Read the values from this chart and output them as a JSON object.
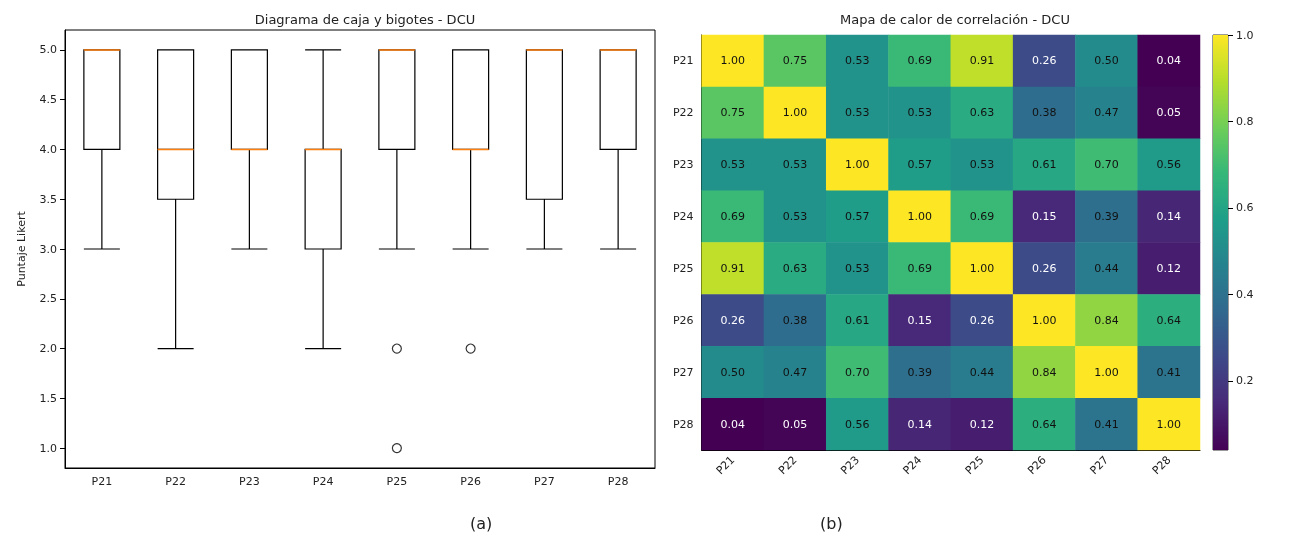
{
  "chart_data": [
    {
      "type": "box",
      "title": "Diagrama de caja y bigotes - DCU",
      "ylabel": "Puntaje Likert",
      "categories": [
        "P21",
        "P22",
        "P23",
        "P24",
        "P25",
        "P26",
        "P27",
        "P28"
      ],
      "boxes": [
        {
          "low": 3,
          "q1": 4,
          "median": 5,
          "q3": 5,
          "high": 5
        },
        {
          "low": 2,
          "q1": 3.5,
          "median": 4,
          "q3": 5,
          "high": 5
        },
        {
          "low": 3,
          "q1": 4,
          "median": 4,
          "q3": 5,
          "high": 5
        },
        {
          "low": 2,
          "q1": 3,
          "median": 4,
          "q3": 4,
          "high": 5
        },
        {
          "low": 3,
          "q1": 4,
          "median": 5,
          "q3": 5,
          "high": 5,
          "outliers": [
            2,
            1
          ]
        },
        {
          "low": 3,
          "q1": 4,
          "median": 4,
          "q3": 5,
          "high": 5,
          "outliers": [
            2
          ]
        },
        {
          "low": 3,
          "q1": 3.5,
          "median": 5,
          "q3": 5,
          "high": 5
        },
        {
          "low": 3,
          "q1": 4,
          "median": 5,
          "q3": 5,
          "high": 5
        }
      ],
      "ylim": [
        0.8,
        5.2
      ],
      "yticks": [
        {
          "value": 1,
          "label": "1.0"
        },
        {
          "value": 1.5,
          "label": "1.5"
        },
        {
          "value": 2,
          "label": "2.0"
        },
        {
          "value": 2.5,
          "label": "2.5"
        },
        {
          "value": 3,
          "label": "3.0"
        },
        {
          "value": 3.5,
          "label": "3.5"
        },
        {
          "value": 4,
          "label": "4.0"
        },
        {
          "value": 4.5,
          "label": "4.5"
        },
        {
          "value": 5,
          "label": "5.0"
        }
      ],
      "grid": false,
      "legend": false,
      "annotations": [
        "(a)"
      ]
    },
    {
      "type": "heatmap",
      "title": "Mapa de calor de correlación - DCU",
      "categories": [
        "P21",
        "P22",
        "P23",
        "P24",
        "P25",
        "P26",
        "P27",
        "P28"
      ],
      "y_categories": [
        "P21",
        "P22",
        "P23",
        "P24",
        "P25",
        "P26",
        "P27",
        "P28"
      ],
      "cells": [
        [
          1.0,
          0.75,
          0.53,
          0.69,
          0.91,
          0.26,
          0.5,
          0.04
        ],
        [
          0.75,
          1.0,
          0.53,
          0.53,
          0.63,
          0.38,
          0.47,
          0.05
        ],
        [
          0.53,
          0.53,
          1.0,
          0.57,
          0.53,
          0.61,
          0.7,
          0.56
        ],
        [
          0.69,
          0.53,
          0.57,
          1.0,
          0.69,
          0.15,
          0.39,
          0.14
        ],
        [
          0.91,
          0.63,
          0.53,
          0.69,
          1.0,
          0.26,
          0.44,
          0.12
        ],
        [
          0.26,
          0.38,
          0.61,
          0.15,
          0.26,
          1.0,
          0.84,
          0.64
        ],
        [
          0.5,
          0.47,
          0.7,
          0.39,
          0.44,
          0.84,
          1.0,
          0.41
        ],
        [
          0.04,
          0.05,
          0.56,
          0.14,
          0.12,
          0.64,
          0.41,
          1.0
        ]
      ],
      "cell_labels": [
        [
          "1.00",
          "0.75",
          "0.53",
          "0.69",
          "0.91",
          "0.26",
          "0.50",
          "0.04"
        ],
        [
          "0.75",
          "1.00",
          "0.53",
          "0.53",
          "0.63",
          "0.38",
          "0.47",
          "0.05"
        ],
        [
          "0.53",
          "0.53",
          "1.00",
          "0.57",
          "0.53",
          "0.61",
          "0.70",
          "0.56"
        ],
        [
          "0.69",
          "0.53",
          "0.57",
          "1.00",
          "0.69",
          "0.15",
          "0.39",
          "0.14"
        ],
        [
          "0.91",
          "0.63",
          "0.53",
          "0.69",
          "1.00",
          "0.26",
          "0.44",
          "0.12"
        ],
        [
          "0.26",
          "0.38",
          "0.61",
          "0.15",
          "0.26",
          "1.00",
          "0.84",
          "0.64"
        ],
        [
          "0.50",
          "0.47",
          "0.70",
          "0.39",
          "0.44",
          "0.84",
          "1.00",
          "0.41"
        ],
        [
          "0.04",
          "0.05",
          "0.56",
          "0.14",
          "0.12",
          "0.64",
          "0.41",
          "1.00"
        ]
      ],
      "data_labels": true,
      "clim": [
        0.04,
        1.0
      ],
      "cticks": [
        {
          "value": 0.2,
          "label": "0.2"
        },
        {
          "value": 0.4,
          "label": "0.4"
        },
        {
          "value": 0.6,
          "label": "0.6"
        },
        {
          "value": 0.8,
          "label": "0.8"
        },
        {
          "value": 1.0,
          "label": "1.0"
        }
      ],
      "annotations": [
        "(b)"
      ]
    }
  ]
}
